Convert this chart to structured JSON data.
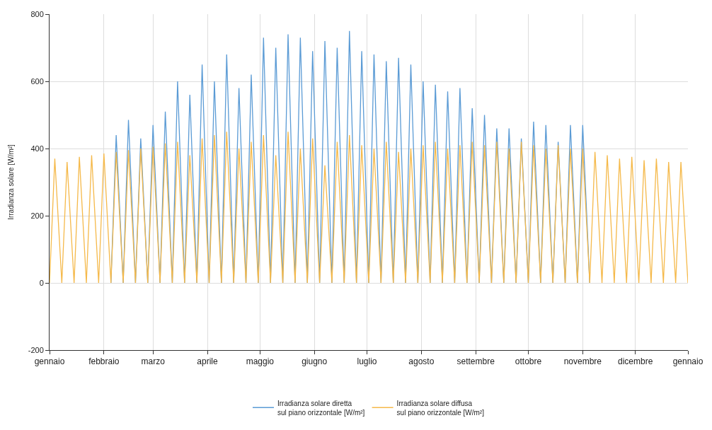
{
  "chart_data": {
    "type": "line",
    "ylabel": "Irradianza solare [W/m²]",
    "x": [
      "--01-01",
      "--01-04",
      "--01-08",
      "--01-11",
      "--01-15",
      "--01-18",
      "--01-22",
      "--01-25",
      "--01-29",
      "--02-01",
      "--02-05",
      "--02-08",
      "--02-12",
      "--02-15",
      "--02-19",
      "--02-22",
      "--02-26",
      "--03-01",
      "--03-05",
      "--03-08",
      "--03-12",
      "--03-15",
      "--03-19",
      "--03-22",
      "--03-26",
      "--03-29",
      "--04-02",
      "--04-05",
      "--04-09",
      "--04-12",
      "--04-16",
      "--04-19",
      "--04-23",
      "--04-26",
      "--04-30",
      "--05-03",
      "--05-07",
      "--05-10",
      "--05-14",
      "--05-17",
      "--05-21",
      "--05-24",
      "--05-28",
      "--05-31",
      "--06-04",
      "--06-07",
      "--06-11",
      "--06-14",
      "--06-18",
      "--06-21",
      "--06-25",
      "--06-28",
      "--07-02",
      "--07-05",
      "--07-09",
      "--07-12",
      "--07-16",
      "--07-19",
      "--07-23",
      "--07-26",
      "--07-30",
      "--08-02",
      "--08-06",
      "--08-09",
      "--08-13",
      "--08-16",
      "--08-20",
      "--08-23",
      "--08-27",
      "--08-30",
      "--09-03",
      "--09-06",
      "--09-10",
      "--09-13",
      "--09-17",
      "--09-20",
      "--09-24",
      "--09-27",
      "--10-01",
      "--10-04",
      "--10-08",
      "--10-11",
      "--10-15",
      "--10-18",
      "--10-22",
      "--10-25",
      "--10-29",
      "--11-01",
      "--11-05",
      "--11-08",
      "--11-12",
      "--11-15",
      "--11-19",
      "--11-22",
      "--11-26",
      "--11-29",
      "--12-03",
      "--12-06",
      "--12-10",
      "--12-13",
      "--12-17",
      "--12-20",
      "--12-24",
      "--12-27",
      "--12-31"
    ],
    "series": [
      {
        "name": "Irradianza solare diretta\nsul piano orizzontale [W/m²]",
        "color": "#5b9bd5",
        "values": [
          null,
          null,
          null,
          null,
          null,
          null,
          null,
          null,
          null,
          null,
          0,
          440,
          0,
          485,
          0,
          430,
          0,
          470,
          0,
          510,
          0,
          600,
          0,
          560,
          0,
          650,
          0,
          600,
          0,
          680,
          0,
          580,
          0,
          620,
          0,
          730,
          0,
          700,
          0,
          740,
          0,
          730,
          0,
          690,
          0,
          720,
          0,
          700,
          0,
          750,
          0,
          690,
          0,
          680,
          0,
          660,
          0,
          670,
          0,
          650,
          0,
          600,
          0,
          590,
          0,
          570,
          0,
          580,
          0,
          520,
          0,
          500,
          0,
          460,
          0,
          460,
          0,
          430,
          0,
          480,
          0,
          470,
          0,
          420,
          0,
          470,
          0,
          470,
          0,
          null,
          null,
          null,
          null,
          null,
          null,
          null,
          null,
          null,
          null,
          null,
          null,
          null,
          null,
          null,
          null
        ]
      },
      {
        "name": "Irradianza solare diffusa\nsul piano orizzontale [W/m²]",
        "color": "#f5b94a",
        "values": [
          0,
          370,
          0,
          360,
          0,
          375,
          0,
          380,
          0,
          385,
          0,
          390,
          0,
          395,
          0,
          400,
          0,
          405,
          0,
          415,
          0,
          420,
          0,
          380,
          0,
          430,
          0,
          440,
          0,
          450,
          0,
          400,
          0,
          420,
          0,
          440,
          0,
          380,
          0,
          450,
          0,
          400,
          0,
          430,
          0,
          350,
          0,
          420,
          0,
          440,
          0,
          410,
          0,
          400,
          0,
          420,
          0,
          390,
          0,
          400,
          0,
          410,
          0,
          420,
          0,
          400,
          0,
          410,
          0,
          420,
          0,
          410,
          0,
          420,
          0,
          400,
          0,
          420,
          0,
          410,
          0,
          400,
          0,
          410,
          0,
          400,
          0,
          400,
          0,
          390,
          0,
          380,
          0,
          370,
          0,
          375,
          0,
          365,
          0,
          370,
          0,
          360,
          0,
          360,
          0
        ]
      }
    ],
    "xlim": [
      "--01-01",
      "--12-31"
    ],
    "xticks": [
      {
        "value": "--01-01",
        "label": "gennaio"
      },
      {
        "value": "--02-01",
        "label": "febbraio"
      },
      {
        "value": "--03-01",
        "label": "marzo"
      },
      {
        "value": "--04-01",
        "label": "aprile"
      },
      {
        "value": "--05-01",
        "label": "maggio"
      },
      {
        "value": "--06-01",
        "label": "giugno"
      },
      {
        "value": "--07-01",
        "label": "luglio"
      },
      {
        "value": "--08-01",
        "label": "agosto"
      },
      {
        "value": "--09-01",
        "label": "settembre"
      },
      {
        "value": "--10-01",
        "label": "ottobre"
      },
      {
        "value": "--11-01",
        "label": "novembre"
      },
      {
        "value": "--12-01",
        "label": "dicembre"
      },
      {
        "value": "--12-31",
        "label": "gennaio"
      }
    ],
    "ylim": [
      -200,
      800
    ],
    "yticks": [
      -200,
      0,
      200,
      400,
      600,
      800
    ],
    "grid": true,
    "legend": "bottom",
    "marker": "none",
    "line_style": "solid"
  }
}
